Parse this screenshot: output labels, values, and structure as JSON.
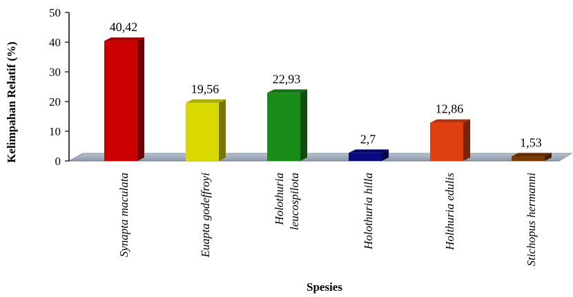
{
  "chart_data": {
    "type": "bar",
    "title": "",
    "xlabel": "Spesies",
    "ylabel": "Kelimpahan Relatif (%)",
    "ylim": [
      0,
      50
    ],
    "yticks": [
      "0",
      "10",
      "20",
      "30",
      "40",
      "50"
    ],
    "grid": false,
    "categories": [
      [
        "Synapta maculata"
      ],
      [
        "Euapta godeffroyi"
      ],
      [
        "Holothuria",
        "leucospilota"
      ],
      [
        "Holothuria hilla"
      ],
      [
        "Holthuria edulis"
      ],
      [
        "Stichopus hermanni"
      ]
    ],
    "values": [
      40.42,
      19.56,
      22.93,
      2.7,
      12.86,
      1.53
    ],
    "data_labels": [
      "40,42",
      "19,56",
      "22,93",
      "2,7",
      "12,86",
      "1,53"
    ],
    "colors": [
      "#cc0000",
      "#d9d900",
      "#1a8c1a",
      "#0a0a80",
      "#e04010",
      "#7a3a00"
    ]
  }
}
